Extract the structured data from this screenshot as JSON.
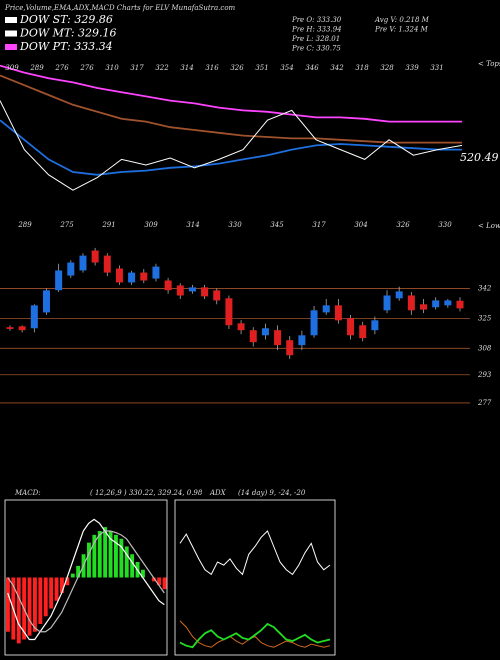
{
  "header": {
    "title": "Price,Volume,EMA,ADX,MACD Charts for ELV MunafaSutra.com",
    "dow": [
      {
        "text": "DOW ST: 329.86",
        "color": "#ffffff"
      },
      {
        "text": "DOW MT: 329.16",
        "color": "#ffffff"
      },
      {
        "text": "DOW PT: 333.34",
        "color": "#ff44ff"
      }
    ],
    "prev": [
      "Pre  O: 333.30",
      "Pre  H: 333.94",
      "Pre  L: 328.01",
      "Pre  C: 330.75"
    ],
    "volume": [
      "Avg  V: 0.218  M",
      "Pre  V: 1.324  M"
    ]
  },
  "chart_data": [
    {
      "type": "line",
      "tops": [
        309,
        289,
        276,
        276,
        310,
        317,
        322,
        314,
        316,
        326,
        351,
        354,
        346,
        342,
        318,
        328,
        339,
        331
      ],
      "tops_label": "< Tops",
      "price_label": "520.49",
      "ylim": [
        0,
        100
      ],
      "series": [
        {
          "color": "#ff44ff",
          "values": [
            96,
            91,
            87,
            84,
            80,
            77,
            74,
            71,
            69,
            66,
            64,
            63,
            61,
            59,
            59,
            58,
            56,
            56,
            56,
            56
          ]
        },
        {
          "color": "#a0522d",
          "values": [
            89,
            82,
            75,
            68,
            63,
            58,
            56,
            52,
            50,
            48,
            46,
            45,
            44,
            44,
            43,
            42,
            41,
            41,
            41,
            41
          ]
        },
        {
          "color": "#1e6fe0",
          "values": [
            57,
            43,
            29,
            20,
            18,
            20,
            21,
            23,
            24,
            26,
            29,
            32,
            36,
            39,
            40,
            39,
            38,
            37,
            36,
            36
          ]
        },
        {
          "color": "#ffffff",
          "values": [
            71,
            36,
            18,
            7,
            16,
            29,
            25,
            30,
            23,
            29,
            36,
            57,
            64,
            43,
            36,
            29,
            43,
            32,
            36,
            39
          ]
        }
      ]
    },
    {
      "type": "candlestick",
      "lows": [
        289,
        275,
        291,
        309,
        314,
        330,
        345,
        317,
        304,
        326,
        330
      ],
      "lows_label": "< Lows",
      "ylim": [
        273,
        378
      ],
      "yticks": [
        342,
        325,
        308,
        293,
        277
      ],
      "up_color": "#1e6fe0",
      "down_color": "#e02020",
      "open": [
        320,
        320.5,
        319.4,
        328.4,
        341,
        349.3,
        352.2,
        363.5,
        360.6,
        353.3,
        345.4,
        351,
        347.6,
        346.5,
        343.7,
        340.3,
        342.6,
        340.9,
        336.4,
        322.2,
        318.3,
        315.4,
        318.3,
        312.6,
        309.8,
        315.4,
        328.4,
        332.4,
        325.1,
        321.1,
        318.3,
        329.6,
        336.4,
        338,
        333,
        331.3,
        332.4,
        335
      ],
      "high": [
        321,
        321,
        333,
        342,
        356,
        358,
        362,
        365,
        362,
        355,
        352,
        353,
        356,
        348,
        345,
        344,
        344,
        342,
        338,
        324,
        320,
        322,
        321,
        315,
        318,
        332,
        336,
        336,
        327,
        323,
        326,
        341,
        343,
        340,
        336,
        337,
        336,
        337
      ],
      "low": [
        318,
        317,
        317,
        327,
        340,
        348,
        351,
        355,
        349,
        344,
        344,
        345,
        346,
        339,
        336,
        339,
        336,
        333,
        319,
        316,
        309,
        313,
        307,
        302,
        307,
        314,
        327,
        322,
        313,
        312,
        316,
        328,
        335,
        327,
        328,
        330,
        331,
        329
      ],
      "close": [
        319,
        318.3,
        332.4,
        340.9,
        352.2,
        356.7,
        360.6,
        356.7,
        351,
        345.4,
        351,
        346.5,
        354.4,
        341,
        338,
        342.6,
        337.5,
        335.2,
        321.1,
        318.3,
        311.5,
        319.4,
        309.8,
        304.1,
        315.4,
        329.6,
        332.4,
        323.9,
        315.4,
        313.8,
        323.9,
        338,
        340.3,
        329.6,
        330,
        335.2,
        335.2,
        330.7
      ]
    },
    {
      "type": "macd",
      "title": "MACD:",
      "subtitle": "( 12,26,9 ) 330.22,  329.24,  0.98",
      "ylim": [
        -10,
        10
      ],
      "histogram": [
        -7,
        -8,
        -8.5,
        -8,
        -7.5,
        -7,
        -6,
        -5,
        -4,
        -3,
        -2,
        -1,
        0.5,
        1.5,
        3,
        4.5,
        5.5,
        6,
        6.5,
        6,
        5.5,
        5,
        4,
        3,
        2,
        1,
        0,
        -0.5,
        -1,
        -1.5
      ],
      "series": [
        {
          "color": "#ffffff",
          "values": [
            -2,
            -4,
            -6,
            -7,
            -8,
            -8,
            -7,
            -6,
            -5,
            -3.5,
            -2,
            0,
            2,
            4,
            6,
            7,
            7.5,
            7,
            6,
            5,
            4.5,
            4,
            3,
            2,
            1,
            0,
            -1,
            -2,
            -3,
            -3.5
          ]
        },
        {
          "color": "#bbbbbb",
          "values": [
            0,
            -1,
            -2.5,
            -4,
            -5.5,
            -6.5,
            -7,
            -7,
            -6.5,
            -5.5,
            -4.5,
            -3,
            -1.5,
            0,
            1.5,
            3,
            4.5,
            5.5,
            6,
            6,
            5.8,
            5.5,
            5,
            4,
            3,
            2,
            1,
            0,
            -1,
            -2
          ]
        }
      ]
    },
    {
      "type": "adx",
      "title": "ADX",
      "subtitle": "(14  day) 9,  -24,  -20",
      "ylim": [
        0,
        100
      ],
      "series": [
        {
          "color": "#ffffff",
          "values": [
            72,
            78,
            70,
            62,
            55,
            52,
            60,
            58,
            62,
            56,
            52,
            65,
            70,
            76,
            80,
            70,
            60,
            55,
            52,
            58,
            66,
            72,
            60,
            55,
            58
          ]
        },
        {
          "color": "#d2691e",
          "values": [
            22,
            18,
            12,
            8,
            6,
            5,
            8,
            10,
            12,
            9,
            7,
            10,
            12,
            8,
            6,
            5,
            7,
            9,
            8,
            6,
            5,
            7,
            6,
            5,
            6
          ]
        },
        {
          "color": "#22dd22",
          "values": [
            8,
            6,
            5,
            10,
            14,
            16,
            12,
            10,
            12,
            14,
            11,
            10,
            13,
            16,
            20,
            18,
            14,
            10,
            9,
            11,
            13,
            10,
            8,
            9,
            10
          ]
        }
      ]
    }
  ]
}
